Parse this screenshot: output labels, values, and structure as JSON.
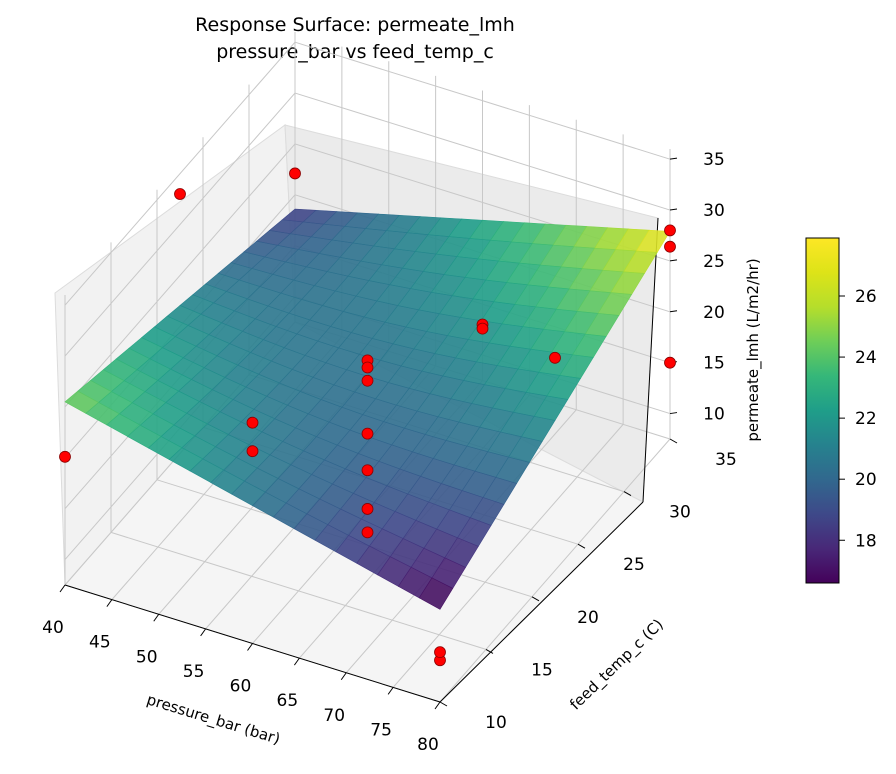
{
  "chart_data": {
    "type": "surface3d",
    "title": "Response Surface: permeate_lmh",
    "subtitle": "pressure_bar vs feed_temp_c",
    "xlabel": "pressure_bar (bar)",
    "ylabel": "feed_temp_c (C)",
    "zlabel": "permeate_lmh (L/m2/hr)",
    "xticks": [
      "40",
      "45",
      "50",
      "55",
      "60",
      "65",
      "70",
      "75",
      "80"
    ],
    "yticks": [
      "10",
      "15",
      "20",
      "25",
      "30",
      "35"
    ],
    "zticks": [
      "10",
      "15",
      "20",
      "25",
      "30",
      "35"
    ],
    "colorbar": {
      "colormap": "viridis",
      "ticks": [
        "18",
        "20",
        "22",
        "24",
        "26"
      ],
      "range": [
        16.6,
        27.9
      ]
    },
    "surface": {
      "description": "fitted response surface",
      "corners": [
        {
          "pressure_bar": 40,
          "feed_temp_c": 10,
          "permeate_lmh": 25.5
        },
        {
          "pressure_bar": 80,
          "feed_temp_c": 10,
          "permeate_lmh": 16.6
        },
        {
          "pressure_bar": 80,
          "feed_temp_c": 35,
          "permeate_lmh": 27.9
        },
        {
          "pressure_bar": 40,
          "feed_temp_c": 35,
          "permeate_lmh": 18.6
        }
      ]
    },
    "points": [
      {
        "x": 40,
        "y": 22.5,
        "z": 33.0
      },
      {
        "x": 40,
        "y": 10,
        "z": 20.1
      },
      {
        "x": 40,
        "y": 35,
        "z": 22.1
      },
      {
        "x": 60,
        "y": 10,
        "z": 29.2
      },
      {
        "x": 60,
        "y": 10,
        "z": 26.4
      },
      {
        "x": 60,
        "y": 22.5,
        "z": 22.4
      },
      {
        "x": 60,
        "y": 22.5,
        "z": 21.7
      },
      {
        "x": 60,
        "y": 22.5,
        "z": 20.4
      },
      {
        "x": 60,
        "y": 22.5,
        "z": 15.2
      },
      {
        "x": 60,
        "y": 22.5,
        "z": 11.6
      },
      {
        "x": 60,
        "y": 22.5,
        "z": 7.8
      },
      {
        "x": 60,
        "y": 22.5,
        "z": 5.5
      },
      {
        "x": 60,
        "y": 35,
        "z": 13.0
      },
      {
        "x": 80,
        "y": 22.5,
        "z": 28.4
      },
      {
        "x": 80,
        "y": 10,
        "z": 11.6
      },
      {
        "x": 80,
        "y": 10,
        "z": 12.4
      },
      {
        "x": 80,
        "y": 35,
        "z": 28.0
      },
      {
        "x": 80,
        "y": 35,
        "z": 15.0
      },
      {
        "x": 80,
        "y": 35,
        "z": 26.4
      },
      {
        "x": 60,
        "y": 35,
        "z": 12.6
      }
    ]
  }
}
